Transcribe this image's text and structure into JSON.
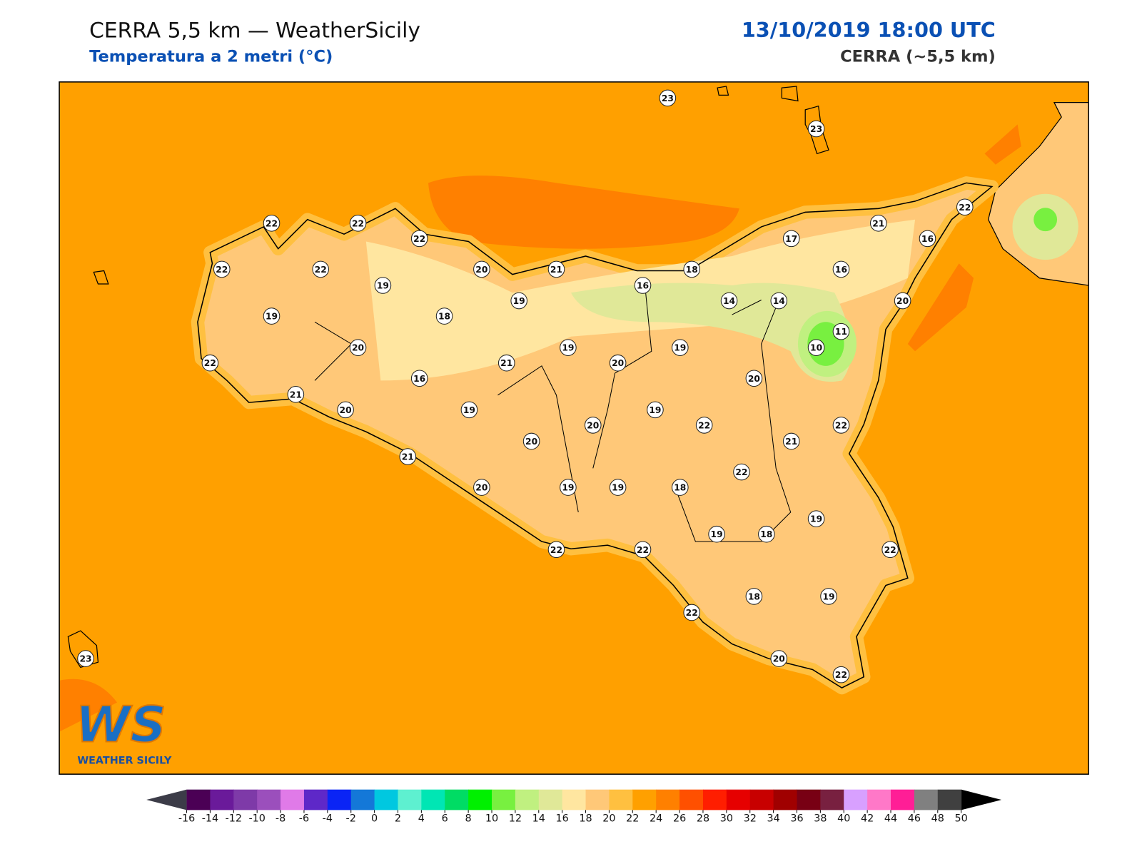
{
  "header": {
    "title": "CERRA 5,5 km — WeatherSicily",
    "subtitle": "Temperatura a 2 metri (°C)",
    "date": "13/10/2019 18:00 UTC",
    "source": "CERRA (~5,5 km)"
  },
  "logo": {
    "mark": "WS",
    "name": "WEATHER SICILY"
  },
  "stations": [
    22,
    22,
    22,
    22,
    22,
    19,
    19,
    18,
    20,
    21,
    19,
    20,
    22,
    21,
    16,
    20,
    19,
    21,
    19,
    20,
    16,
    18,
    14,
    14,
    17,
    16,
    21,
    16,
    22,
    20,
    11,
    10,
    19,
    20,
    19,
    20,
    20,
    21,
    22,
    21,
    22,
    22,
    20,
    19,
    19,
    18,
    19,
    19,
    18,
    22,
    22,
    22,
    22,
    18,
    19,
    20,
    22,
    23,
    23,
    23
  ],
  "colorbar": {
    "ticks": [
      -16,
      -14,
      -12,
      -10,
      -8,
      -6,
      -4,
      -2,
      0,
      2,
      4,
      6,
      8,
      10,
      12,
      14,
      16,
      18,
      20,
      22,
      24,
      26,
      28,
      30,
      32,
      34,
      36,
      38,
      40,
      42,
      44,
      46,
      48,
      50
    ],
    "colors": [
      "#4b0055",
      "#6a1a9a",
      "#7e3aa8",
      "#9b4fbc",
      "#e07ae8",
      "#5e28c8",
      "#0a24f5",
      "#1478d8",
      "#00c8e0",
      "#5ef0d0",
      "#00e6b4",
      "#00dc64",
      "#00f000",
      "#78f040",
      "#c0f080",
      "#e0e898",
      "#ffe6a0",
      "#ffc878",
      "#ffc040",
      "#ffa000",
      "#ff8000",
      "#ff5000",
      "#ff1e00",
      "#e60000",
      "#c80000",
      "#a00000",
      "#780014",
      "#782040",
      "#d8a0ff",
      "#ff78c8",
      "#ff1e96",
      "#808080",
      "#404040"
    ],
    "under_color": "#3c3c48",
    "over_color": "#000000"
  }
}
